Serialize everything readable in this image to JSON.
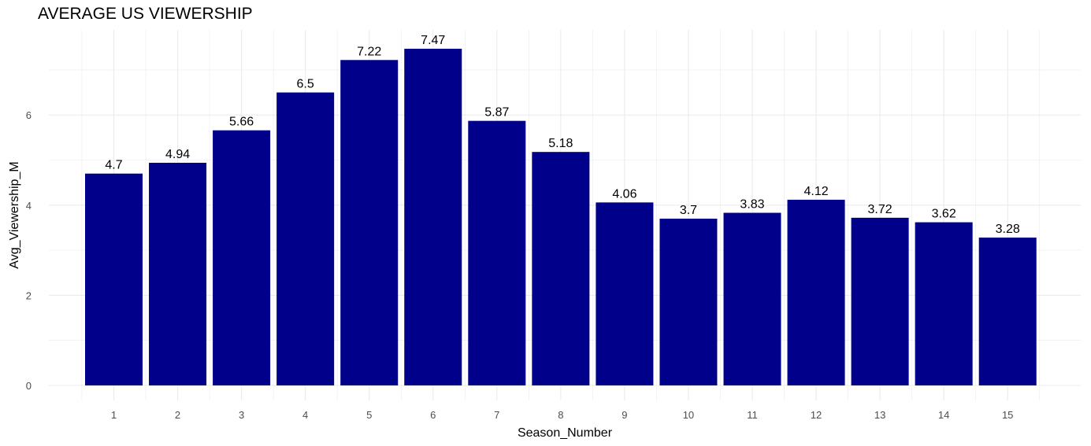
{
  "chart_data": {
    "type": "bar",
    "title": "AVERAGE US VIEWERSHIP",
    "xlabel": "Season_Number",
    "ylabel": "Avg_Viewership_M",
    "categories": [
      "1",
      "2",
      "3",
      "4",
      "5",
      "6",
      "7",
      "8",
      "9",
      "10",
      "11",
      "12",
      "13",
      "14",
      "15"
    ],
    "values": [
      4.7,
      4.94,
      5.66,
      6.5,
      7.22,
      7.47,
      5.87,
      5.18,
      4.06,
      3.7,
      3.83,
      4.12,
      3.72,
      3.62,
      3.28
    ],
    "data_labels": [
      "4.7",
      "4.94",
      "5.66",
      "6.5",
      "7.22",
      "7.47",
      "5.87",
      "5.18",
      "4.06",
      "3.7",
      "3.83",
      "4.12",
      "3.72",
      "3.62",
      "3.28"
    ],
    "y_ticks": [
      "0",
      "2",
      "4",
      "6"
    ],
    "ylim": [
      0,
      7.84
    ],
    "grid": true,
    "legend": "none",
    "colors": {
      "bar": "#00008B",
      "grid": "#ebebeb",
      "tick_text": "#4d4d4d"
    }
  }
}
